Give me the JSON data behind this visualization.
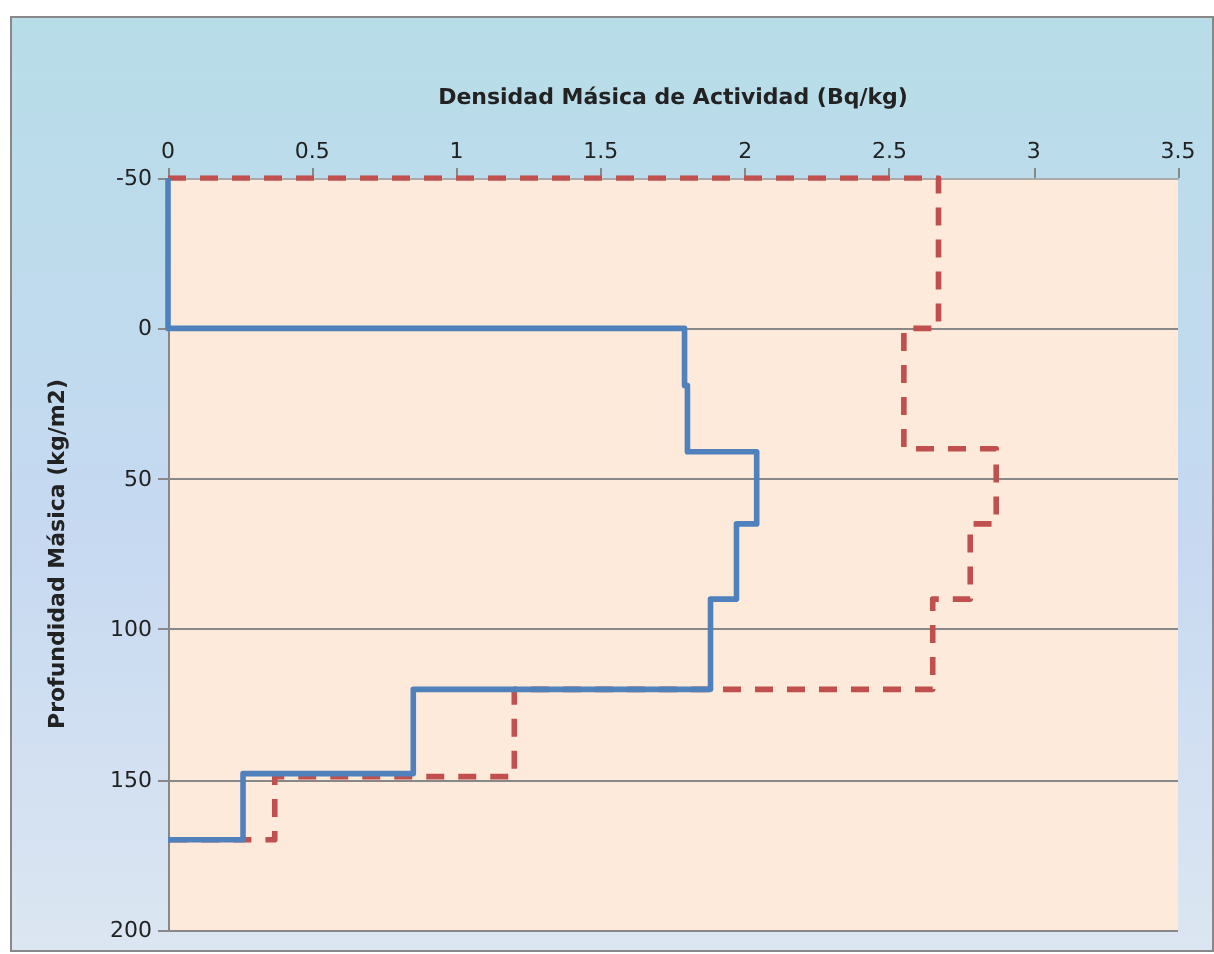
{
  "chart_data": {
    "type": "line",
    "xlabel": "Densidad Másica de Actividad (Bq/kg)",
    "ylabel": "Profundidad Másica (kg/m2)",
    "xlim": [
      0,
      3.5
    ],
    "xticks": [
      0,
      0.5,
      1,
      1.5,
      2,
      2.5,
      3,
      3.5
    ],
    "ylim": [
      200,
      -50
    ],
    "yticks": [
      -50,
      0,
      50,
      100,
      150,
      200
    ],
    "grid": "y",
    "marker": "none",
    "series": [
      {
        "color": "#4f81bd",
        "line_style": "solid",
        "x": [
          0,
          0,
          1.79,
          1.79,
          1.8,
          1.8,
          2.04,
          2.04,
          1.97,
          1.97,
          1.88,
          1.88,
          0.85,
          0.85,
          0.26,
          0.26,
          0
        ],
        "values": [
          -50,
          0,
          0,
          19,
          19,
          41,
          41,
          65,
          65,
          90,
          90,
          120,
          120,
          148,
          148,
          170,
          170
        ]
      },
      {
        "color": "#c0504d",
        "line_style": "dashed",
        "x": [
          0,
          2.67,
          2.67,
          2.55,
          2.55,
          2.87,
          2.87,
          2.78,
          2.78,
          2.65,
          2.65,
          1.2,
          1.2,
          0.37,
          0.37,
          0
        ],
        "values": [
          -50,
          -50,
          0,
          0,
          40,
          40,
          65,
          65,
          90,
          90,
          120,
          120,
          149,
          149,
          170,
          170
        ]
      }
    ]
  }
}
